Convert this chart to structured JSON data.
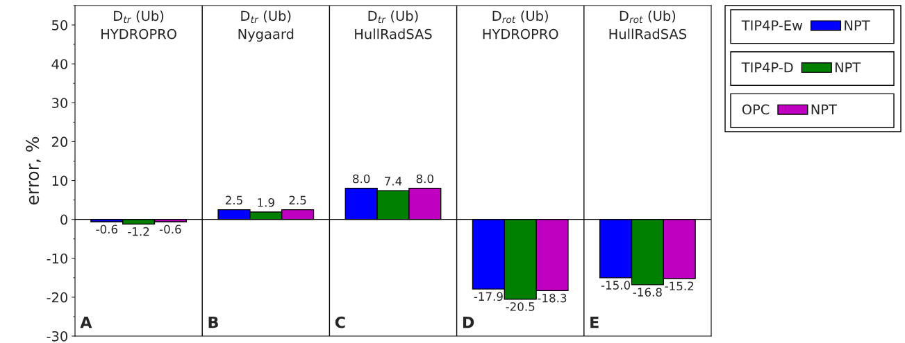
{
  "chart_data": {
    "type": "bar",
    "categories": [
      "D$_{tr}$ (Ub)\nHYDROPRO",
      "D$_{tr}$ (Ub)\nNygaard",
      "D$_{tr}$ (Ub)\nHullRadSAS",
      "D$_{rot}$ (Ub)\nHYDROPRO",
      "D$_{rot}$ (Ub)\nHullRadSAS"
    ],
    "ylabel": "error, %",
    "ylim": [
      -30,
      55
    ],
    "yticks": [
      -30,
      -20,
      -10,
      0,
      10,
      20,
      30,
      40,
      50
    ],
    "annotations": [
      "A",
      "B",
      "C",
      "D",
      "E"
    ],
    "ref_lines": [
      {
        "axis": "y",
        "value": 0
      }
    ],
    "legend": "right",
    "legend_title": "NPT",
    "series": [
      {
        "name": "TIP4P-Ew",
        "color": "#0000ff",
        "values": [
          -0.6,
          2.5,
          8.0,
          -17.9,
          -15.0
        ],
        "value_labels": [
          "-0.6",
          "2.5",
          "8.0",
          "-17.9",
          "-15.0"
        ]
      },
      {
        "name": "TIP4P-D",
        "color": "#008000",
        "values": [
          -1.2,
          1.9,
          7.4,
          -20.5,
          -16.8
        ],
        "value_labels": [
          "-1.2",
          "1.9",
          "7.4",
          "-20.5",
          "-16.8"
        ]
      },
      {
        "name": "OPC",
        "color": "#c000c0",
        "values": [
          -0.6,
          2.5,
          8.0,
          -18.3,
          -15.2
        ],
        "value_labels": [
          "-0.6",
          "2.5",
          "8.0",
          "-18.3",
          "-15.2"
        ]
      }
    ]
  }
}
